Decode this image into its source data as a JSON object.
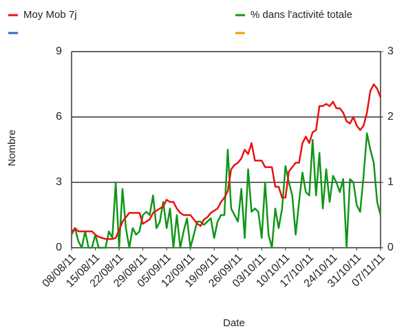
{
  "chart_data": {
    "type": "line",
    "xlabel": "Date",
    "ylabel": "Nombre",
    "categories": [
      "08/08/11",
      null,
      null,
      null,
      null,
      null,
      null,
      "15/08/11",
      null,
      null,
      null,
      null,
      null,
      null,
      "22/08/11",
      null,
      null,
      null,
      null,
      null,
      null,
      "29/08/11",
      null,
      null,
      null,
      null,
      null,
      null,
      "05/09/11",
      null,
      null,
      null,
      null,
      null,
      null,
      "12/09/11",
      null,
      null,
      null,
      null,
      null,
      null,
      "19/09/11",
      null,
      null,
      null,
      null,
      null,
      null,
      "26/09/11",
      null,
      null,
      null,
      null,
      null,
      null,
      "03/10/11",
      null,
      null,
      null,
      null,
      null,
      null,
      "10/10/11",
      null,
      null,
      null,
      null,
      null,
      null,
      "17/10/11",
      null,
      null,
      null,
      null,
      null,
      null,
      "24/10/11",
      null,
      null,
      null,
      null,
      null,
      null,
      "31/10/11",
      null,
      null,
      null,
      null,
      null,
      null,
      "07/11/11"
    ],
    "series": [
      {
        "name": "Moy Mob 7j",
        "color": "#e8110f",
        "values": [
          0.7,
          0.9,
          0.75,
          0.75,
          0.75,
          0.75,
          0.75,
          0.6,
          0.5,
          0.45,
          0.4,
          0.4,
          0.4,
          0.45,
          0.8,
          1.2,
          1.4,
          1.6,
          1.6,
          1.6,
          1.6,
          1.1,
          1.2,
          1.3,
          1.6,
          1.7,
          1.8,
          1.9,
          2.2,
          2.1,
          2.1,
          1.8,
          1.6,
          1.5,
          1.5,
          1.5,
          1.3,
          1.1,
          1.0,
          1.3,
          1.4,
          1.6,
          1.7,
          1.8,
          2.1,
          2.3,
          2.6,
          3.6,
          3.8,
          3.9,
          4.1,
          4.5,
          4.3,
          4.8,
          4.0,
          4.0,
          4.0,
          3.7,
          3.7,
          3.7,
          2.8,
          2.8,
          2.3,
          2.3,
          3.5,
          3.7,
          3.9,
          3.9,
          4.8,
          5.1,
          4.8,
          5.3,
          5.4,
          6.5,
          6.5,
          6.6,
          6.5,
          6.7,
          6.4,
          6.4,
          6.2,
          5.8,
          5.7,
          6.0,
          5.6,
          5.4,
          5.6,
          6.2,
          7.2,
          7.5,
          7.3,
          6.9
        ]
      },
      {
        "name": "% dans l'activité totale",
        "color": "#109618",
        "axis": "y2",
        "values": [
          0.2,
          0.3,
          0.1,
          0,
          0.25,
          0,
          0,
          0.2,
          0,
          0,
          0,
          0.25,
          0.15,
          1.0,
          0,
          0.9,
          0.3,
          0,
          0.3,
          0.2,
          0.25,
          0.5,
          0.55,
          0.5,
          0.8,
          0.3,
          0.4,
          0.7,
          0.3,
          0.6,
          0,
          0.5,
          0,
          0.25,
          0.45,
          0,
          0.2,
          0.4,
          0.4,
          0.35,
          0.4,
          0.45,
          0.15,
          0.4,
          0.5,
          0.5,
          1.5,
          0.6,
          0.5,
          0.4,
          0.9,
          0.15,
          1.2,
          0.55,
          0.6,
          0.55,
          0.15,
          1.0,
          0.2,
          0,
          0.6,
          0.3,
          0.6,
          1.25,
          1.0,
          0.8,
          0.2,
          0.7,
          1.15,
          0.85,
          0.8,
          1.65,
          0.8,
          1.45,
          0.6,
          1.2,
          0.7,
          1.1,
          1.0,
          0.85,
          1.05,
          0,
          1.05,
          1.0,
          0.65,
          0.55,
          1.1,
          1.75,
          1.5,
          1.3,
          0.7,
          0.5
        ]
      }
    ],
    "ylim": [
      0,
      9
    ],
    "yticks": [
      0,
      3,
      6,
      9
    ],
    "y2lim": [
      0,
      3
    ],
    "y2ticks": [
      0,
      1,
      2,
      3
    ],
    "grid": true
  }
}
